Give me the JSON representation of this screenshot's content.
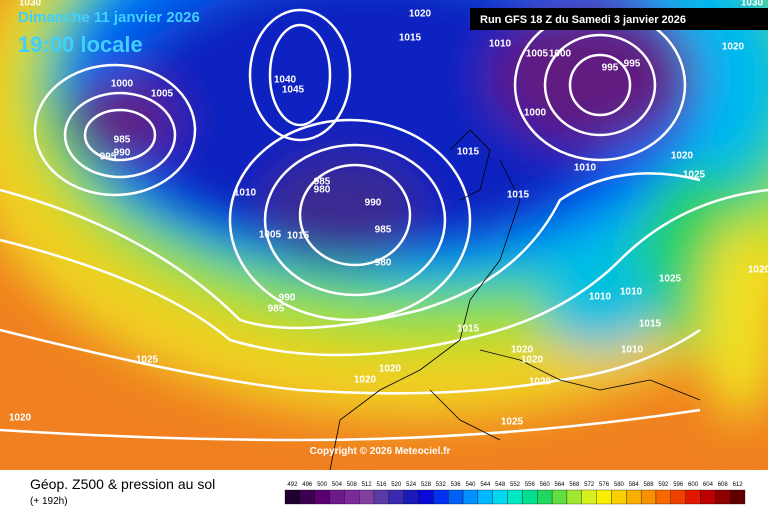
{
  "header": {
    "date": "Dimanche 11 janvier 2026",
    "time": "19:00 locale",
    "run": "Run GFS 18 Z du Samedi 3 janvier 2026"
  },
  "map": {
    "isobar_labels": [
      1030,
      1030,
      1020,
      1015,
      1010,
      1005,
      1000,
      1000,
      995,
      995,
      1000,
      1005,
      985,
      990,
      995,
      1040,
      1045,
      1010,
      985,
      980,
      990,
      985,
      980,
      1005,
      1015,
      990,
      985,
      1015,
      1015,
      1010,
      1020,
      1025,
      1020,
      1025,
      1010,
      1010,
      1015,
      1010,
      1015,
      1020,
      1020,
      1020,
      1020,
      1025,
      1020,
      1025,
      1020,
      1020
    ],
    "copyright": "Copyright © 2026 Meteociel.fr"
  },
  "footer": {
    "title": "Géop. Z500 & pression au sol",
    "lead": "(+ 192h)",
    "scale": {
      "ticks": [
        492,
        496,
        500,
        504,
        508,
        512,
        516,
        520,
        524,
        528,
        532,
        536,
        540,
        544,
        548,
        552,
        556,
        560,
        564,
        568,
        572,
        576,
        580,
        584,
        588,
        592,
        596,
        600,
        604,
        608,
        612
      ],
      "colors": [
        "#1f0030",
        "#3b0050",
        "#5a0070",
        "#6e1a8a",
        "#7a2a9a",
        "#8040a0",
        "#5a3aa8",
        "#3a2ab0",
        "#1a1ab8",
        "#0a0ad8",
        "#0030f0",
        "#0060f8",
        "#0090ff",
        "#00b8ff",
        "#00d8f0",
        "#00e8c0",
        "#00e090",
        "#20d860",
        "#60e040",
        "#a0e830",
        "#d8f020",
        "#f8f000",
        "#f8d000",
        "#f8b000",
        "#f89000",
        "#f86800",
        "#f04000",
        "#e01800",
        "#c00000",
        "#900000",
        "#600000"
      ]
    }
  }
}
